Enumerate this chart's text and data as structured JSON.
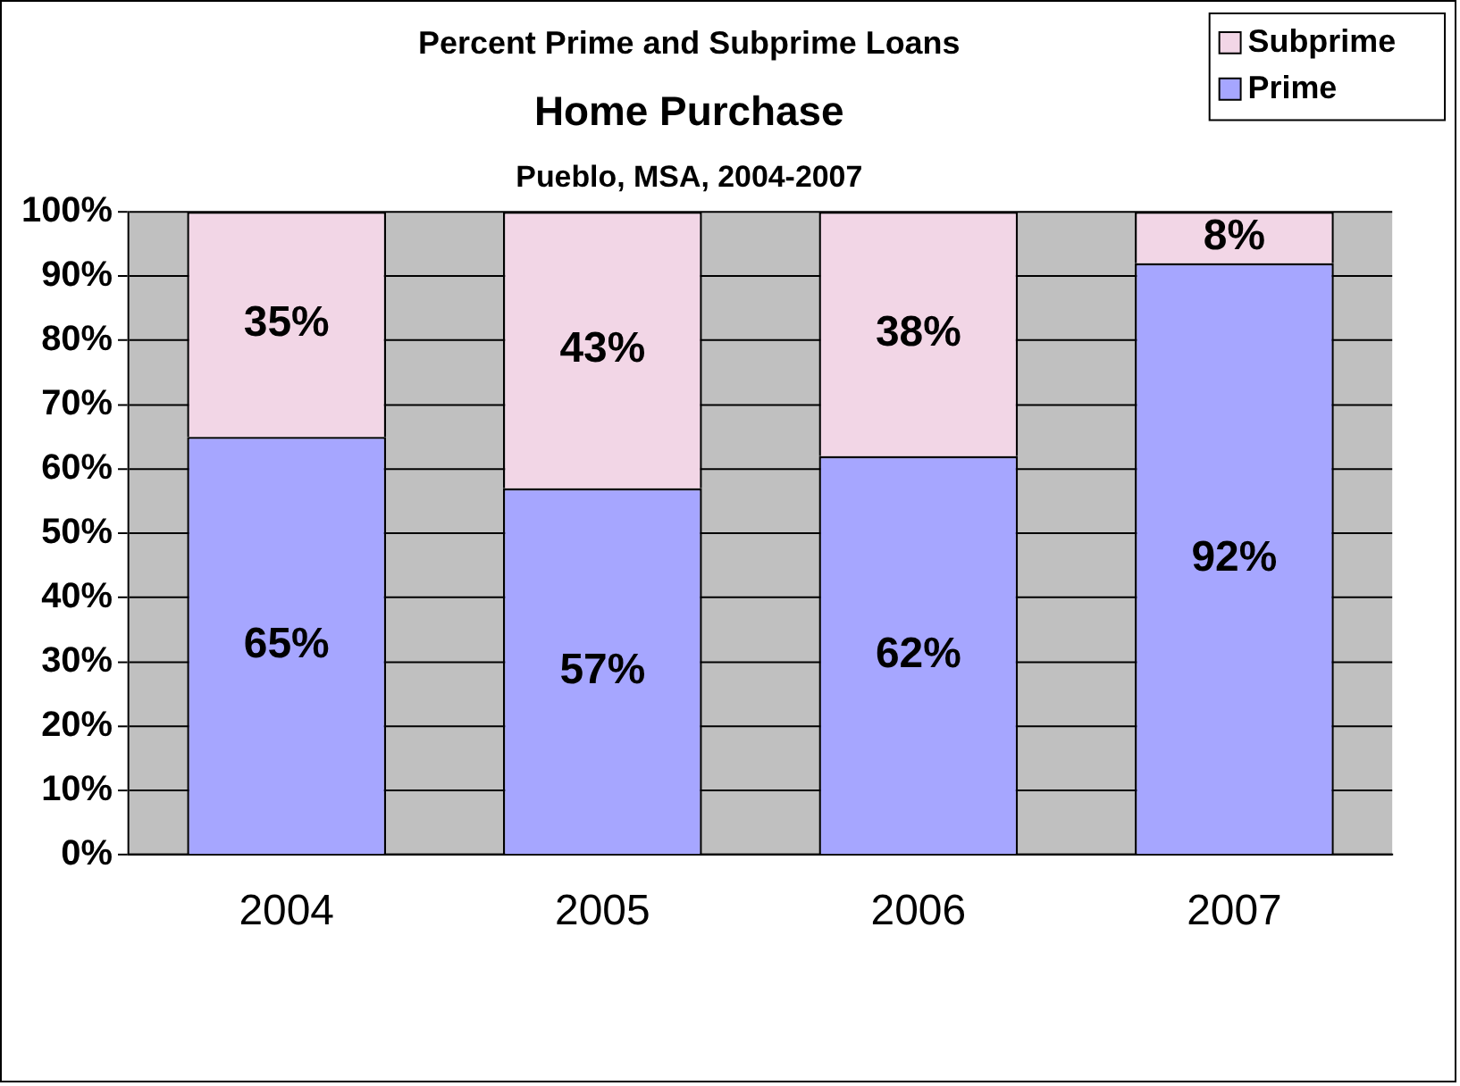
{
  "chart_data": {
    "type": "bar",
    "title": "Percent Prime and Subprime Loans",
    "subtitle": "Home Purchase",
    "annotations": [
      "Pueblo, MSA, 2004-2007"
    ],
    "categories": [
      "2004",
      "2005",
      "2006",
      "2007"
    ],
    "stacked": true,
    "series": [
      {
        "name": "Prime",
        "color": "#a6a6ff",
        "values": [
          65,
          57,
          62,
          92
        ],
        "value_labels": [
          "65%",
          "57%",
          "62%",
          "92%"
        ]
      },
      {
        "name": "Subprime",
        "color": "#f2d6e6",
        "values": [
          35,
          43,
          38,
          8
        ],
        "value_labels": [
          "35%",
          "43%",
          "38%",
          "8%"
        ]
      }
    ],
    "ylim": [
      0,
      100
    ],
    "yticks": [
      {
        "value": 0,
        "label": "0%"
      },
      {
        "value": 10,
        "label": "10%"
      },
      {
        "value": 20,
        "label": "20%"
      },
      {
        "value": 30,
        "label": "30%"
      },
      {
        "value": 40,
        "label": "40%"
      },
      {
        "value": 50,
        "label": "50%"
      },
      {
        "value": 60,
        "label": "60%"
      },
      {
        "value": 70,
        "label": "70%"
      },
      {
        "value": 80,
        "label": "80%"
      },
      {
        "value": 90,
        "label": "90%"
      },
      {
        "value": 100,
        "label": "100%"
      }
    ],
    "grid": "y",
    "legend": "top right"
  }
}
